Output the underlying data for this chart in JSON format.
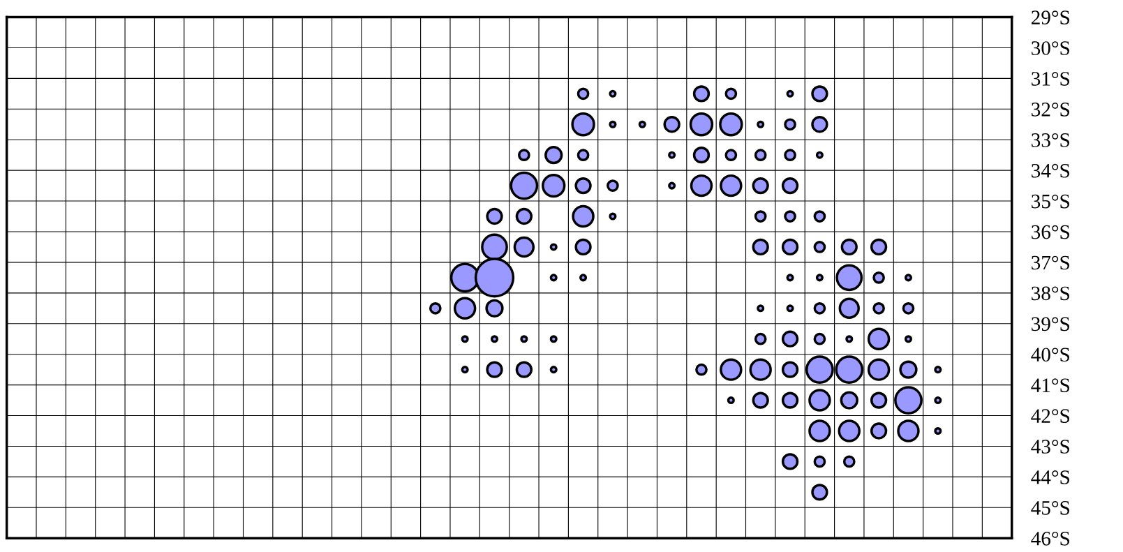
{
  "chart_data": {
    "type": "bubble",
    "categories": [
      null,
      null,
      null,
      null,
      null,
      null,
      null,
      null,
      null,
      null,
      null,
      null,
      null,
      null,
      null,
      null,
      null,
      null,
      null,
      null,
      null,
      null,
      null,
      null,
      null,
      null,
      null,
      null,
      null,
      null,
      null,
      null,
      null,
      null
    ],
    "ylim": [
      46,
      29
    ],
    "yticks": [
      {
        "value": 29,
        "label": "29°S"
      },
      {
        "value": 30,
        "label": "30°S"
      },
      {
        "value": 31,
        "label": "31°S"
      },
      {
        "value": 32,
        "label": "32°S"
      },
      {
        "value": 33,
        "label": "33°S"
      },
      {
        "value": 34,
        "label": "34°S"
      },
      {
        "value": 35,
        "label": "35°S"
      },
      {
        "value": 36,
        "label": "36°S"
      },
      {
        "value": 37,
        "label": "37°S"
      },
      {
        "value": 38,
        "label": "38°S"
      },
      {
        "value": 39,
        "label": "39°S"
      },
      {
        "value": 40,
        "label": "40°S"
      },
      {
        "value": 41,
        "label": "41°S"
      },
      {
        "value": 42,
        "label": "42°S"
      },
      {
        "value": 43,
        "label": "43°S"
      },
      {
        "value": 44,
        "label": "44°S"
      },
      {
        "value": 45,
        "label": "45°S"
      },
      {
        "value": 46,
        "label": "46°S"
      }
    ],
    "tick_labels": "y",
    "grid": true,
    "series": [
      {
        "color": "#9999ff",
        "values": [
          null,
          null,
          null,
          null,
          null,
          null,
          null,
          null,
          null,
          null,
          null,
          null,
          null,
          null,
          null,
          null,
          null,
          null,
          null,
          31.5,
          31.5,
          null,
          null,
          31.5,
          31.5,
          null,
          31.5,
          31.5,
          null,
          null,
          null,
          null,
          null,
          null
        ],
        "sizes": [
          null,
          null,
          null,
          null,
          null,
          null,
          null,
          null,
          null,
          null,
          null,
          null,
          null,
          null,
          null,
          null,
          null,
          null,
          null,
          0.07,
          0.02,
          null,
          null,
          0.15,
          0.07,
          null,
          0.02,
          0.15,
          null,
          null,
          null,
          null,
          null,
          null
        ]
      },
      {
        "color": "#9999ff",
        "values": [
          null,
          null,
          null,
          null,
          null,
          null,
          null,
          null,
          null,
          null,
          null,
          null,
          null,
          null,
          null,
          null,
          null,
          null,
          null,
          32.5,
          32.5,
          32.5,
          32.5,
          32.5,
          32.5,
          32.5,
          32.5,
          32.5,
          null,
          null,
          null,
          null,
          null,
          null
        ],
        "sizes": [
          null,
          null,
          null,
          null,
          null,
          null,
          null,
          null,
          null,
          null,
          null,
          null,
          null,
          null,
          null,
          null,
          null,
          null,
          null,
          0.33,
          0.02,
          0.02,
          0.15,
          0.33,
          0.33,
          0.02,
          0.07,
          0.15,
          null,
          null,
          null,
          null,
          null,
          null
        ]
      },
      {
        "color": "#9999ff",
        "values": [
          null,
          null,
          null,
          null,
          null,
          null,
          null,
          null,
          null,
          null,
          null,
          null,
          null,
          null,
          null,
          null,
          null,
          33.5,
          33.5,
          33.5,
          null,
          null,
          33.5,
          33.5,
          33.5,
          33.5,
          33.5,
          33.5,
          null,
          null,
          null,
          null,
          null,
          null
        ],
        "sizes": [
          null,
          null,
          null,
          null,
          null,
          null,
          null,
          null,
          null,
          null,
          null,
          null,
          null,
          null,
          null,
          null,
          null,
          0.07,
          0.18,
          0.07,
          null,
          null,
          0.02,
          0.15,
          0.07,
          0.07,
          0.07,
          0.02,
          null,
          null,
          null,
          null,
          null,
          null
        ]
      },
      {
        "color": "#9999ff",
        "values": [
          null,
          null,
          null,
          null,
          null,
          null,
          null,
          null,
          null,
          null,
          null,
          null,
          null,
          null,
          null,
          null,
          null,
          34.5,
          34.5,
          34.5,
          34.5,
          null,
          34.5,
          34.5,
          34.5,
          34.5,
          34.5,
          null,
          null,
          null,
          null,
          null,
          null,
          null
        ],
        "sizes": [
          null,
          null,
          null,
          null,
          null,
          null,
          null,
          null,
          null,
          null,
          null,
          null,
          null,
          null,
          null,
          null,
          null,
          0.48,
          0.33,
          0.15,
          0.07,
          null,
          0.02,
          0.29,
          0.29,
          0.15,
          0.15,
          null,
          null,
          null,
          null,
          null,
          null,
          null
        ]
      },
      {
        "color": "#9999ff",
        "values": [
          null,
          null,
          null,
          null,
          null,
          null,
          null,
          null,
          null,
          null,
          null,
          null,
          null,
          null,
          null,
          null,
          35.5,
          35.5,
          null,
          35.5,
          35.5,
          null,
          null,
          null,
          null,
          35.5,
          35.5,
          35.5,
          null,
          null,
          null,
          null,
          null,
          null
        ],
        "sizes": [
          null,
          null,
          null,
          null,
          null,
          null,
          null,
          null,
          null,
          null,
          null,
          null,
          null,
          null,
          null,
          null,
          0.15,
          0.15,
          null,
          0.29,
          0.02,
          null,
          null,
          null,
          null,
          0.07,
          0.07,
          0.07,
          null,
          null,
          null,
          null,
          null,
          null
        ]
      },
      {
        "color": "#9999ff",
        "values": [
          null,
          null,
          null,
          null,
          null,
          null,
          null,
          null,
          null,
          null,
          null,
          null,
          null,
          null,
          null,
          null,
          36.5,
          36.5,
          36.5,
          36.5,
          null,
          null,
          null,
          null,
          null,
          36.5,
          36.5,
          36.5,
          36.5,
          36.5,
          null,
          null,
          null,
          null
        ],
        "sizes": [
          null,
          null,
          null,
          null,
          null,
          null,
          null,
          null,
          null,
          null,
          null,
          null,
          null,
          null,
          null,
          null,
          0.43,
          0.25,
          0.02,
          0.15,
          null,
          null,
          null,
          null,
          null,
          0.15,
          0.15,
          0.07,
          0.15,
          0.15,
          null,
          null,
          null,
          null
        ]
      },
      {
        "color": "#9999ff",
        "values": [
          null,
          null,
          null,
          null,
          null,
          null,
          null,
          null,
          null,
          null,
          null,
          null,
          null,
          null,
          null,
          37.5,
          37.5,
          null,
          37.5,
          37.5,
          null,
          null,
          null,
          null,
          null,
          null,
          37.5,
          37.5,
          37.5,
          37.5,
          37.5,
          null,
          null,
          null
        ],
        "sizes": [
          null,
          null,
          null,
          null,
          null,
          null,
          null,
          null,
          null,
          null,
          null,
          null,
          null,
          null,
          null,
          0.53,
          1,
          null,
          0.02,
          0.02,
          null,
          null,
          null,
          null,
          null,
          null,
          0.02,
          0.02,
          0.43,
          0.07,
          0.02,
          null,
          null,
          null
        ]
      },
      {
        "color": "#9999ff",
        "values": [
          null,
          null,
          null,
          null,
          null,
          null,
          null,
          null,
          null,
          null,
          null,
          null,
          null,
          null,
          38.5,
          38.5,
          38.5,
          null,
          null,
          null,
          null,
          null,
          null,
          null,
          null,
          38.5,
          38.5,
          38.5,
          38.5,
          38.5,
          38.5,
          null,
          null,
          null
        ],
        "sizes": [
          null,
          null,
          null,
          null,
          null,
          null,
          null,
          null,
          null,
          null,
          null,
          null,
          null,
          null,
          0.07,
          0.29,
          0.18,
          null,
          null,
          null,
          null,
          null,
          null,
          null,
          null,
          0.02,
          0.02,
          0.07,
          0.25,
          0.07,
          0.07,
          null,
          null,
          null
        ]
      },
      {
        "color": "#9999ff",
        "values": [
          null,
          null,
          null,
          null,
          null,
          null,
          null,
          null,
          null,
          null,
          null,
          null,
          null,
          null,
          null,
          39.5,
          39.5,
          39.5,
          39.5,
          null,
          null,
          null,
          null,
          null,
          null,
          39.5,
          39.5,
          39.5,
          39.5,
          39.5,
          39.5,
          null,
          null,
          null
        ],
        "sizes": [
          null,
          null,
          null,
          null,
          null,
          null,
          null,
          null,
          null,
          null,
          null,
          null,
          null,
          null,
          null,
          0.02,
          0.02,
          0.02,
          0.02,
          null,
          null,
          null,
          null,
          null,
          null,
          0.07,
          0.15,
          0.07,
          0.02,
          0.29,
          0.02,
          null,
          null,
          null
        ]
      },
      {
        "color": "#9999ff",
        "values": [
          null,
          null,
          null,
          null,
          null,
          null,
          null,
          null,
          null,
          null,
          null,
          null,
          null,
          null,
          null,
          40.5,
          40.5,
          40.5,
          40.5,
          null,
          null,
          null,
          null,
          40.5,
          40.5,
          40.5,
          40.5,
          40.5,
          40.5,
          40.5,
          40.5,
          40.5,
          null,
          null
        ],
        "sizes": [
          null,
          null,
          null,
          null,
          null,
          null,
          null,
          null,
          null,
          null,
          null,
          null,
          null,
          null,
          null,
          0.02,
          0.15,
          0.15,
          0.02,
          null,
          null,
          null,
          null,
          0.07,
          0.29,
          0.29,
          0.15,
          0.48,
          0.48,
          0.29,
          0.18,
          0.02,
          null,
          null
        ]
      },
      {
        "color": "#9999ff",
        "values": [
          null,
          null,
          null,
          null,
          null,
          null,
          null,
          null,
          null,
          null,
          null,
          null,
          null,
          null,
          null,
          null,
          null,
          null,
          null,
          null,
          null,
          null,
          null,
          null,
          41.5,
          41.5,
          41.5,
          41.5,
          41.5,
          41.5,
          41.5,
          41.5,
          null,
          null
        ],
        "sizes": [
          null,
          null,
          null,
          null,
          null,
          null,
          null,
          null,
          null,
          null,
          null,
          null,
          null,
          null,
          null,
          null,
          null,
          null,
          null,
          null,
          null,
          null,
          null,
          null,
          0.02,
          0.15,
          0.15,
          0.29,
          0.18,
          0.15,
          0.48,
          0.02,
          null,
          null
        ]
      },
      {
        "color": "#9999ff",
        "values": [
          null,
          null,
          null,
          null,
          null,
          null,
          null,
          null,
          null,
          null,
          null,
          null,
          null,
          null,
          null,
          null,
          null,
          null,
          null,
          null,
          null,
          null,
          null,
          null,
          null,
          null,
          null,
          42.5,
          42.5,
          42.5,
          42.5,
          42.5,
          null,
          null
        ],
        "sizes": [
          null,
          null,
          null,
          null,
          null,
          null,
          null,
          null,
          null,
          null,
          null,
          null,
          null,
          null,
          null,
          null,
          null,
          null,
          null,
          null,
          null,
          null,
          null,
          null,
          null,
          null,
          null,
          0.29,
          0.29,
          0.15,
          0.29,
          0.02,
          null,
          null
        ]
      },
      {
        "color": "#9999ff",
        "values": [
          null,
          null,
          null,
          null,
          null,
          null,
          null,
          null,
          null,
          null,
          null,
          null,
          null,
          null,
          null,
          null,
          null,
          null,
          null,
          null,
          null,
          null,
          null,
          null,
          null,
          null,
          43.5,
          43.5,
          43.5,
          null,
          null,
          null,
          null,
          null
        ],
        "sizes": [
          null,
          null,
          null,
          null,
          null,
          null,
          null,
          null,
          null,
          null,
          null,
          null,
          null,
          null,
          null,
          null,
          null,
          null,
          null,
          null,
          null,
          null,
          null,
          null,
          null,
          null,
          0.15,
          0.07,
          0.07,
          null,
          null,
          null,
          null,
          null
        ]
      },
      {
        "color": "#9999ff",
        "values": [
          null,
          null,
          null,
          null,
          null,
          null,
          null,
          null,
          null,
          null,
          null,
          null,
          null,
          null,
          null,
          null,
          null,
          null,
          null,
          null,
          null,
          null,
          null,
          null,
          null,
          null,
          null,
          44.5,
          null,
          null,
          null,
          null,
          null,
          null
        ],
        "sizes": [
          null,
          null,
          null,
          null,
          null,
          null,
          null,
          null,
          null,
          null,
          null,
          null,
          null,
          null,
          null,
          null,
          null,
          null,
          null,
          null,
          null,
          null,
          null,
          null,
          null,
          null,
          null,
          0.15,
          null,
          null,
          null,
          null,
          null,
          null
        ]
      }
    ]
  }
}
